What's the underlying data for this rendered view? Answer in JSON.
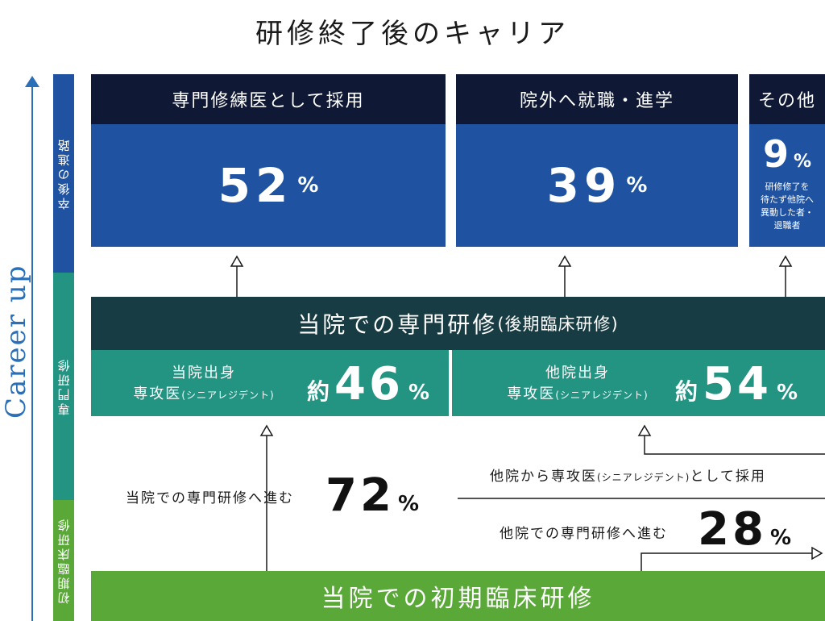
{
  "title": "研修終了後のキャリア",
  "career_label": "Career up",
  "sidebar": {
    "post": "卒後の進路",
    "specialist": "専門研修",
    "initial": "初期臨床研修"
  },
  "outcomes": [
    {
      "header": "専門修練医として採用",
      "value": "52",
      "unit": "%"
    },
    {
      "header": "院外へ就職・進学",
      "value": "39",
      "unit": "%"
    },
    {
      "header": "その他",
      "value": "9",
      "unit": "%",
      "note": [
        "研修修了を",
        "待たず他院へ",
        "異動した者・",
        "退職者"
      ]
    }
  ],
  "specialist": {
    "title": "当院での専門研修",
    "subtitle": "(後期臨床研修)",
    "left": {
      "line1": "当院出身",
      "line2": "専攻医",
      "line2_small": "(シニアレジデント)",
      "prefix": "約",
      "value": "46",
      "unit": "%"
    },
    "right": {
      "line1": "他院出身",
      "line2": "専攻医",
      "line2_small": "(シニアレジデント)",
      "prefix": "約",
      "value": "54",
      "unit": "%"
    }
  },
  "flows": {
    "own_label": "当院での専門研修へ進む",
    "own_value": "72",
    "other_hire_label": "他院から専攻医",
    "other_hire_small": "(シニアレジデント)",
    "other_hire_suffix": "として採用",
    "other_label": "他院での専門研修へ進む",
    "other_value": "28",
    "unit": "%"
  },
  "initial": {
    "title": "当院での初期臨床研修"
  },
  "colors": {
    "navy": "#0f1834",
    "blue": "#1f52a0",
    "teal_dark": "#183c43",
    "teal": "#239382",
    "green": "#5aa938",
    "career_blue": "#2a6fb8"
  }
}
